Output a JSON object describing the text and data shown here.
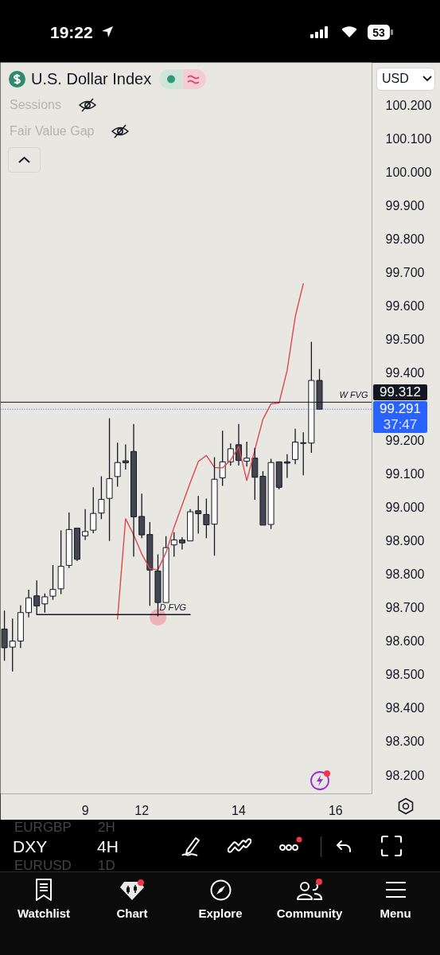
{
  "chart_data": {
    "type": "candlestick",
    "title": "U.S. Dollar Index",
    "categories": [
      null,
      null,
      null,
      null,
      null,
      null,
      null,
      null,
      null,
      null,
      "9",
      null,
      null,
      null,
      null,
      null,
      null,
      "12",
      null,
      null,
      null,
      null,
      null,
      null,
      null,
      null,
      null,
      null,
      null,
      "14",
      null,
      null,
      null,
      null,
      null,
      null,
      null,
      null,
      null,
      null,
      null,
      "16",
      null,
      null,
      null,
      null
    ],
    "ohlc": [
      [
        98.635,
        98.69,
        98.54,
        98.579
      ],
      [
        98.581,
        98.666,
        98.508,
        98.599
      ],
      [
        98.599,
        98.706,
        98.578,
        98.684
      ],
      [
        98.684,
        98.752,
        98.67,
        98.728
      ],
      [
        98.734,
        98.78,
        98.678,
        98.704
      ],
      [
        98.71,
        98.741,
        98.684,
        98.731
      ],
      [
        98.733,
        98.826,
        98.722,
        98.753
      ],
      [
        98.755,
        98.929,
        98.739,
        98.822
      ],
      [
        98.825,
        98.983,
        98.817,
        98.932
      ],
      [
        98.936,
        98.936,
        98.838,
        98.843
      ],
      [
        98.913,
        98.993,
        98.901,
        98.926
      ],
      [
        98.93,
        99.058,
        98.921,
        98.98
      ],
      [
        98.981,
        99.091,
        98.963,
        99.022
      ],
      [
        99.025,
        99.264,
        98.898,
        99.084
      ],
      [
        99.09,
        99.191,
        99.06,
        99.132
      ],
      [
        99.137,
        99.186,
        99.111,
        99.131
      ],
      [
        99.165,
        99.247,
        98.851,
        98.97
      ],
      [
        98.971,
        99.039,
        98.906,
        98.916
      ],
      [
        98.917,
        98.954,
        98.704,
        98.811
      ],
      [
        98.808,
        98.858,
        98.673,
        98.714
      ],
      [
        98.714,
        98.912,
        98.714,
        98.878
      ],
      [
        98.886,
        98.924,
        98.851,
        98.901
      ],
      [
        98.901,
        98.909,
        98.872,
        98.892
      ],
      [
        98.898,
        98.993,
        98.898,
        98.985
      ],
      [
        98.988,
        99.032,
        98.92,
        98.979
      ],
      [
        98.977,
        99.024,
        98.906,
        98.946
      ],
      [
        98.948,
        99.148,
        98.854,
        99.082
      ],
      [
        99.086,
        99.227,
        99.062,
        99.134
      ],
      [
        99.134,
        99.189,
        99.123,
        99.173
      ],
      [
        99.185,
        99.247,
        99.123,
        99.138
      ],
      [
        99.136,
        99.194,
        99.12,
        99.145
      ],
      [
        99.145,
        99.176,
        99.021,
        99.088
      ],
      [
        99.091,
        99.106,
        98.945,
        98.945
      ],
      [
        98.947,
        99.143,
        98.934,
        99.132
      ],
      [
        99.134,
        99.134,
        99.052,
        99.058
      ],
      [
        99.134,
        99.157,
        99.086,
        99.13
      ],
      [
        99.141,
        99.233,
        99.127,
        99.193
      ],
      [
        99.191,
        99.222,
        99.094,
        99.189
      ],
      [
        99.19,
        99.492,
        99.161,
        99.377
      ],
      [
        99.377,
        99.411,
        99.291,
        99.291
      ],
      null,
      null,
      null,
      null,
      null,
      null
    ],
    "color": "#131722",
    "colors": [
      "#434651",
      "#ffffff",
      "#ffffff",
      "#ffffff",
      "#434651",
      "#ffffff",
      "#ffffff",
      "#ffffff",
      "#ffffff",
      "#434651",
      "#ffffff",
      "#ffffff",
      "#ffffff",
      "#ffffff",
      "#ffffff",
      "#434651",
      "#434651",
      "#434651",
      "#434651",
      "#434651",
      "#ffffff",
      "#ffffff",
      "#434651",
      "#ffffff",
      "#434651",
      "#434651",
      "#ffffff",
      "#ffffff",
      "#ffffff",
      "#434651",
      "#ffffff",
      "#434651",
      "#434651",
      "#ffffff",
      "#434651",
      "#434651",
      "#ffffff",
      "#434651",
      "#ffffff",
      "#434651",
      null,
      null,
      null,
      null,
      null,
      null
    ],
    "series": [
      {
        "type": "line",
        "color": "#e0474c",
        "values": [
          null,
          null,
          null,
          null,
          null,
          null,
          null,
          null,
          null,
          null,
          null,
          null,
          null,
          null,
          98.665,
          98.964,
          98.916,
          98.859,
          98.815,
          98.812,
          98.863,
          98.939,
          99.005,
          99.072,
          99.135,
          99.153,
          99.117,
          99.116,
          99.139,
          99.179,
          99.078,
          99.17,
          99.261,
          99.307,
          99.31,
          99.407,
          99.567,
          99.666,
          null,
          null,
          null,
          null,
          null,
          null,
          null,
          null
        ]
      },
      {
        "type": "line",
        "name": "D FVG",
        "color": "#131722",
        "values": [
          null,
          null,
          null,
          null,
          98.678,
          98.678,
          98.678,
          98.678,
          98.678,
          98.678,
          98.678,
          98.678,
          98.678,
          98.678,
          98.678,
          98.678,
          98.678,
          98.678,
          98.678,
          98.678,
          98.678,
          98.678,
          98.678,
          98.678,
          null,
          null,
          null,
          null,
          null,
          null,
          null,
          null,
          null,
          null,
          null,
          null,
          null,
          null,
          null,
          null,
          null,
          null,
          null,
          null,
          null,
          null
        ]
      },
      {
        "type": "scatter",
        "marker": "circle",
        "color": "#eda5aa",
        "values": [
          null,
          null,
          null,
          null,
          null,
          null,
          null,
          null,
          null,
          null,
          null,
          null,
          null,
          null,
          null,
          null,
          null,
          null,
          null,
          98.67,
          null,
          null,
          null,
          null,
          null,
          null,
          null,
          null,
          null,
          null,
          null,
          null,
          null,
          null,
          null,
          null,
          null,
          null,
          null,
          null,
          null,
          null,
          null,
          null,
          null,
          null
        ]
      }
    ],
    "ref_lines": [
      {
        "axis": "y",
        "value": 99.312,
        "label": "W FVG",
        "color": "#131722"
      },
      {
        "axis": "y",
        "value": 99.291,
        "color": "#2962ff",
        "line_style": "dotted"
      }
    ],
    "annotations": [
      "19:22",
      "53",
      "Sessions",
      "Fair Value Gap",
      "USD",
      "EURGBP",
      "2H",
      "DXY",
      "4H",
      "EURUSD",
      "1D",
      "Watchlist",
      "Chart",
      "Explore",
      "Community",
      "Menu",
      "99.312",
      "99.291",
      "37:47"
    ],
    "ylim": [
      98.143,
      100.326
    ],
    "yticks": [
      {
        "value": 98.2,
        "label": "98.200"
      },
      {
        "value": 98.3,
        "label": "98.300"
      },
      {
        "value": 98.4,
        "label": "98.400"
      },
      {
        "value": 98.5,
        "label": "98.500"
      },
      {
        "value": 98.6,
        "label": "98.600"
      },
      {
        "value": 98.7,
        "label": "98.700"
      },
      {
        "value": 98.8,
        "label": "98.800"
      },
      {
        "value": 98.9,
        "label": "98.900"
      },
      {
        "value": 99,
        "label": "99.000"
      },
      {
        "value": 99.1,
        "label": "99.100"
      },
      {
        "value": 99.2,
        "label": "99.200"
      },
      {
        "value": 99.4,
        "label": "99.400"
      },
      {
        "value": 99.5,
        "label": "99.500"
      },
      {
        "value": 99.6,
        "label": "99.600"
      },
      {
        "value": 99.7,
        "label": "99.700"
      },
      {
        "value": 99.8,
        "label": "99.800"
      },
      {
        "value": 99.9,
        "label": "99.900"
      },
      {
        "value": 100,
        "label": "100.000"
      },
      {
        "value": 100.1,
        "label": "100.100"
      },
      {
        "value": 100.2,
        "label": "100.200"
      }
    ]
  }
}
